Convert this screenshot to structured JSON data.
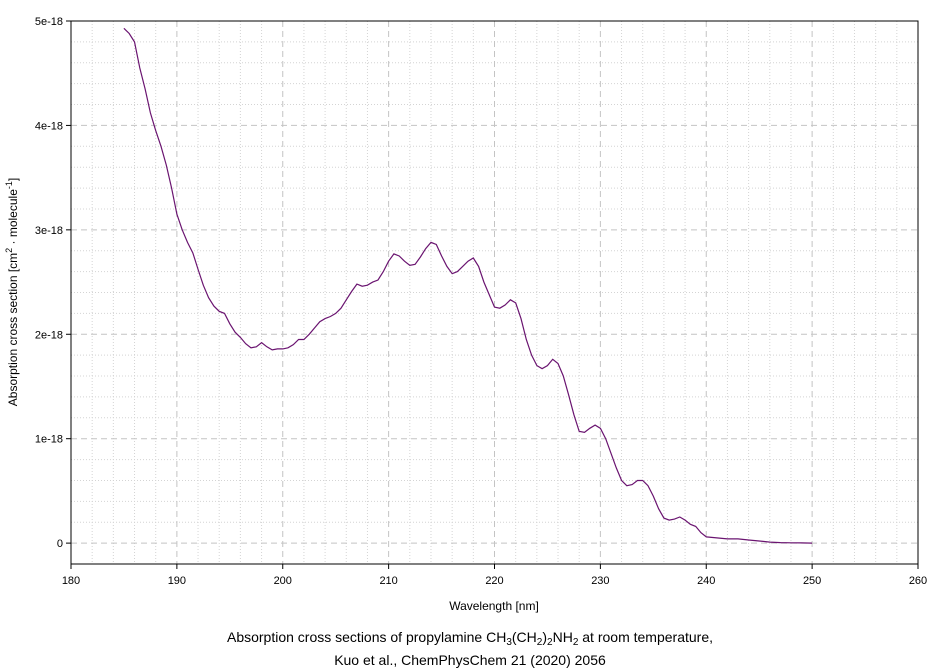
{
  "chart_data": {
    "type": "line",
    "xlabel": "Wavelength [nm]",
    "ylabel": {
      "prefix": "Absorption cross section [cm",
      "sup1": "2",
      "mid": " · molecule",
      "sup2": "-1",
      "suffix": "]"
    },
    "xlim": [
      180,
      260
    ],
    "ylim": [
      -2e-19,
      5e-18
    ],
    "x_ticks": [
      180,
      190,
      200,
      210,
      220,
      230,
      240,
      250,
      260
    ],
    "y_ticks": [
      {
        "value": 0,
        "label": "0"
      },
      {
        "value": 1e-18,
        "label": "1e-18"
      },
      {
        "value": 2e-18,
        "label": "2e-18"
      },
      {
        "value": 3e-18,
        "label": "3e-18"
      },
      {
        "value": 4e-18,
        "label": "4e-18"
      },
      {
        "value": 5e-18,
        "label": "5e-18"
      }
    ],
    "grid": true,
    "line_color": "#6a1470",
    "series": [
      {
        "x": [
          185.0,
          185.5,
          186.0,
          186.5,
          187.0,
          187.5,
          188.0,
          188.5,
          189.0,
          189.5,
          190.0,
          190.5,
          191.0,
          191.5,
          192.0,
          192.5,
          193.0,
          193.5,
          194.0,
          194.5,
          195.0,
          195.5,
          196.0,
          196.5,
          197.0,
          197.5,
          198.0,
          198.5,
          199.0,
          199.5,
          200.0,
          200.5,
          201.0,
          201.5,
          202.0,
          202.5,
          203.0,
          203.5,
          204.0,
          204.5,
          205.0,
          205.5,
          206.0,
          206.5,
          207.0,
          207.5,
          208.0,
          208.5,
          209.0,
          209.5,
          210.0,
          210.5,
          211.0,
          211.5,
          212.0,
          212.5,
          213.0,
          213.5,
          214.0,
          214.5,
          215.0,
          215.5,
          216.0,
          216.5,
          217.0,
          217.5,
          218.0,
          218.5,
          219.0,
          219.5,
          220.0,
          220.5,
          221.0,
          221.5,
          222.0,
          222.5,
          223.0,
          223.5,
          224.0,
          224.5,
          225.0,
          225.5,
          226.0,
          226.5,
          227.0,
          227.5,
          228.0,
          228.5,
          229.0,
          229.5,
          230.0,
          230.5,
          231.0,
          231.5,
          232.0,
          232.5,
          233.0,
          233.5,
          234.0,
          234.5,
          235.0,
          235.5,
          236.0,
          236.5,
          237.0,
          237.5,
          238.0,
          238.5,
          239.0,
          239.5,
          240.0,
          241.0,
          242.0,
          243.0,
          244.0,
          245.0,
          246.0,
          247.0,
          248.0,
          249.0,
          250.0
        ],
        "y": [
          4.93e-18,
          4.88e-18,
          4.8e-18,
          4.55e-18,
          4.35e-18,
          4.12e-18,
          3.95e-18,
          3.8e-18,
          3.62e-18,
          3.4e-18,
          3.15e-18,
          3e-18,
          2.88e-18,
          2.78e-18,
          2.62e-18,
          2.47e-18,
          2.35e-18,
          2.27e-18,
          2.22e-18,
          2.2e-18,
          2.1e-18,
          2.02e-18,
          1.97e-18,
          1.91e-18,
          1.87e-18,
          1.88e-18,
          1.92e-18,
          1.88e-18,
          1.85e-18,
          1.86e-18,
          1.86e-18,
          1.87e-18,
          1.9e-18,
          1.95e-18,
          1.95e-18,
          2e-18,
          2.06e-18,
          2.12e-18,
          2.15e-18,
          2.17e-18,
          2.2e-18,
          2.25e-18,
          2.33e-18,
          2.41e-18,
          2.48e-18,
          2.46e-18,
          2.47e-18,
          2.5e-18,
          2.52e-18,
          2.6e-18,
          2.7e-18,
          2.77e-18,
          2.75e-18,
          2.7e-18,
          2.66e-18,
          2.67e-18,
          2.74e-18,
          2.82e-18,
          2.88e-18,
          2.86e-18,
          2.75e-18,
          2.65e-18,
          2.58e-18,
          2.6e-18,
          2.65e-18,
          2.7e-18,
          2.73e-18,
          2.65e-18,
          2.5e-18,
          2.38e-18,
          2.26e-18,
          2.25e-18,
          2.28e-18,
          2.33e-18,
          2.3e-18,
          2.15e-18,
          1.95e-18,
          1.8e-18,
          1.7e-18,
          1.67e-18,
          1.7e-18,
          1.76e-18,
          1.72e-18,
          1.6e-18,
          1.42e-18,
          1.23e-18,
          1.07e-18,
          1.06e-18,
          1.1e-18,
          1.13e-18,
          1.1e-18,
          1e-18,
          8.6e-19,
          7.2e-19,
          6e-19,
          5.5e-19,
          5.6e-19,
          6e-19,
          6e-19,
          5.5e-19,
          4.5e-19,
          3.3e-19,
          2.4e-19,
          2.2e-19,
          2.3e-19,
          2.5e-19,
          2.2e-19,
          1.8e-19,
          1.6e-19,
          1e-19,
          6e-20,
          5e-20,
          4e-20,
          4e-20,
          3e-20,
          2e-20,
          1e-20,
          5e-21,
          3e-21,
          2e-21,
          0.0
        ]
      }
    ]
  },
  "caption": {
    "line1": {
      "prefix": "Absorption cross sections of propylamine CH",
      "sub1": "3",
      "mid1": "(CH",
      "sub2": "2",
      "mid2": ")",
      "sub3": "2",
      "mid3": "NH",
      "sub4": "2",
      "suffix": " at room temperature,"
    },
    "line2": "Kuo et al., ChemPhysChem 21 (2020) 2056"
  }
}
